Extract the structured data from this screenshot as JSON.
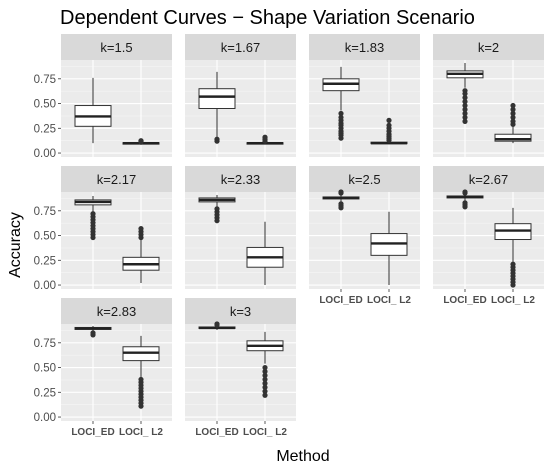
{
  "chart_data": {
    "type": "boxplot",
    "title": "Dependent Curves − Shape Variation Scenario",
    "xlabel": "Method",
    "ylabel": "Accuracy",
    "categories": [
      "LOCI_ED",
      "LOCI_ L2"
    ],
    "ylim": [
      -0.04,
      0.94
    ],
    "yticks": [
      "0.00",
      "0.25",
      "0.50",
      "0.75"
    ],
    "grid": true,
    "layout": "facet-wrap 4 columns",
    "panels": [
      {
        "label": "k=1.5",
        "boxes": [
          {
            "category": "LOCI_ED",
            "min": 0.1,
            "q1": 0.27,
            "median": 0.37,
            "q3": 0.48,
            "max": 0.76,
            "outliers": []
          },
          {
            "category": "LOCI_ L2",
            "min": 0.09,
            "q1": 0.095,
            "median": 0.1,
            "q3": 0.105,
            "max": 0.11,
            "outliers": [
              0.11,
              0.12,
              0.125
            ]
          }
        ]
      },
      {
        "label": "k=1.67",
        "boxes": [
          {
            "category": "LOCI_ED",
            "min": 0.16,
            "q1": 0.45,
            "median": 0.57,
            "q3": 0.65,
            "max": 0.82,
            "outliers": [
              0.12,
              0.14
            ]
          },
          {
            "category": "LOCI_ L2",
            "min": 0.09,
            "q1": 0.095,
            "median": 0.1,
            "q3": 0.105,
            "max": 0.11,
            "outliers": [
              0.12,
              0.14,
              0.16
            ]
          }
        ]
      },
      {
        "label": "k=1.83",
        "boxes": [
          {
            "category": "LOCI_ED",
            "min": 0.43,
            "q1": 0.63,
            "median": 0.7,
            "q3": 0.75,
            "max": 0.87,
            "outliers": [
              0.15,
              0.18,
              0.2,
              0.22,
              0.25,
              0.28,
              0.3,
              0.33,
              0.36,
              0.4
            ]
          },
          {
            "category": "LOCI_ L2",
            "min": 0.09,
            "q1": 0.095,
            "median": 0.1,
            "q3": 0.11,
            "max": 0.12,
            "outliers": [
              0.13,
              0.15,
              0.17,
              0.19,
              0.22,
              0.25,
              0.28,
              0.33
            ]
          }
        ]
      },
      {
        "label": "k=2",
        "boxes": [
          {
            "category": "LOCI_ED",
            "min": 0.66,
            "q1": 0.76,
            "median": 0.8,
            "q3": 0.83,
            "max": 0.91,
            "outliers": [
              0.32,
              0.36,
              0.4,
              0.44,
              0.48,
              0.52,
              0.56,
              0.6,
              0.63
            ]
          },
          {
            "category": "LOCI_ L2",
            "min": 0.1,
            "q1": 0.12,
            "median": 0.14,
            "q3": 0.19,
            "max": 0.27,
            "outliers": [
              0.29,
              0.32,
              0.36,
              0.4,
              0.44,
              0.48
            ]
          }
        ]
      },
      {
        "label": "k=2.17",
        "boxes": [
          {
            "category": "LOCI_ED",
            "min": 0.74,
            "q1": 0.81,
            "median": 0.84,
            "q3": 0.86,
            "max": 0.9,
            "outliers": [
              0.48,
              0.51,
              0.54,
              0.57,
              0.6,
              0.63,
              0.66,
              0.69,
              0.72
            ]
          },
          {
            "category": "LOCI_ L2",
            "min": 0.02,
            "q1": 0.15,
            "median": 0.21,
            "q3": 0.28,
            "max": 0.46,
            "outliers": [
              0.48,
              0.51,
              0.54,
              0.57
            ]
          }
        ]
      },
      {
        "label": "k=2.33",
        "boxes": [
          {
            "category": "LOCI_ED",
            "min": 0.79,
            "q1": 0.84,
            "median": 0.86,
            "q3": 0.88,
            "max": 0.91,
            "outliers": [
              0.65,
              0.68,
              0.71,
              0.74,
              0.77
            ]
          },
          {
            "category": "LOCI_ L2",
            "min": 0.0,
            "q1": 0.18,
            "median": 0.28,
            "q3": 0.38,
            "max": 0.64,
            "outliers": []
          }
        ]
      },
      {
        "label": "k=2.5",
        "boxes": [
          {
            "category": "LOCI_ED",
            "min": 0.84,
            "q1": 0.87,
            "median": 0.88,
            "q3": 0.89,
            "max": 0.92,
            "outliers": [
              0.78,
              0.8,
              0.82,
              0.93,
              0.94
            ]
          },
          {
            "category": "LOCI_ L2",
            "min": 0.0,
            "q1": 0.3,
            "median": 0.42,
            "q3": 0.52,
            "max": 0.74,
            "outliers": []
          }
        ]
      },
      {
        "label": "k=2.67",
        "boxes": [
          {
            "category": "LOCI_ED",
            "min": 0.85,
            "q1": 0.88,
            "median": 0.89,
            "q3": 0.9,
            "max": 0.92,
            "outliers": [
              0.79,
              0.81,
              0.83,
              0.93,
              0.94
            ]
          },
          {
            "category": "LOCI_ L2",
            "min": 0.23,
            "q1": 0.46,
            "median": 0.55,
            "q3": 0.62,
            "max": 0.78,
            "outliers": [
              0.0,
              0.03,
              0.06,
              0.09,
              0.12,
              0.15,
              0.18,
              0.21
            ]
          }
        ]
      },
      {
        "label": "k=2.83",
        "boxes": [
          {
            "category": "LOCI_ED",
            "min": 0.87,
            "q1": 0.885,
            "median": 0.895,
            "q3": 0.905,
            "max": 0.92,
            "outliers": [
              0.83,
              0.85
            ]
          },
          {
            "category": "LOCI_ L2",
            "min": 0.4,
            "q1": 0.57,
            "median": 0.65,
            "q3": 0.71,
            "max": 0.82,
            "outliers": [
              0.11,
              0.14,
              0.17,
              0.2,
              0.23,
              0.26,
              0.29,
              0.32,
              0.35,
              0.38
            ]
          }
        ]
      },
      {
        "label": "k=3",
        "boxes": [
          {
            "category": "LOCI_ED",
            "min": 0.88,
            "q1": 0.895,
            "median": 0.9,
            "q3": 0.91,
            "max": 0.925,
            "outliers": [
              0.93,
              0.94
            ]
          },
          {
            "category": "LOCI_ L2",
            "min": 0.54,
            "q1": 0.67,
            "median": 0.72,
            "q3": 0.77,
            "max": 0.86,
            "outliers": [
              0.22,
              0.26,
              0.3,
              0.34,
              0.38,
              0.42,
              0.46,
              0.5
            ]
          }
        ]
      }
    ]
  }
}
